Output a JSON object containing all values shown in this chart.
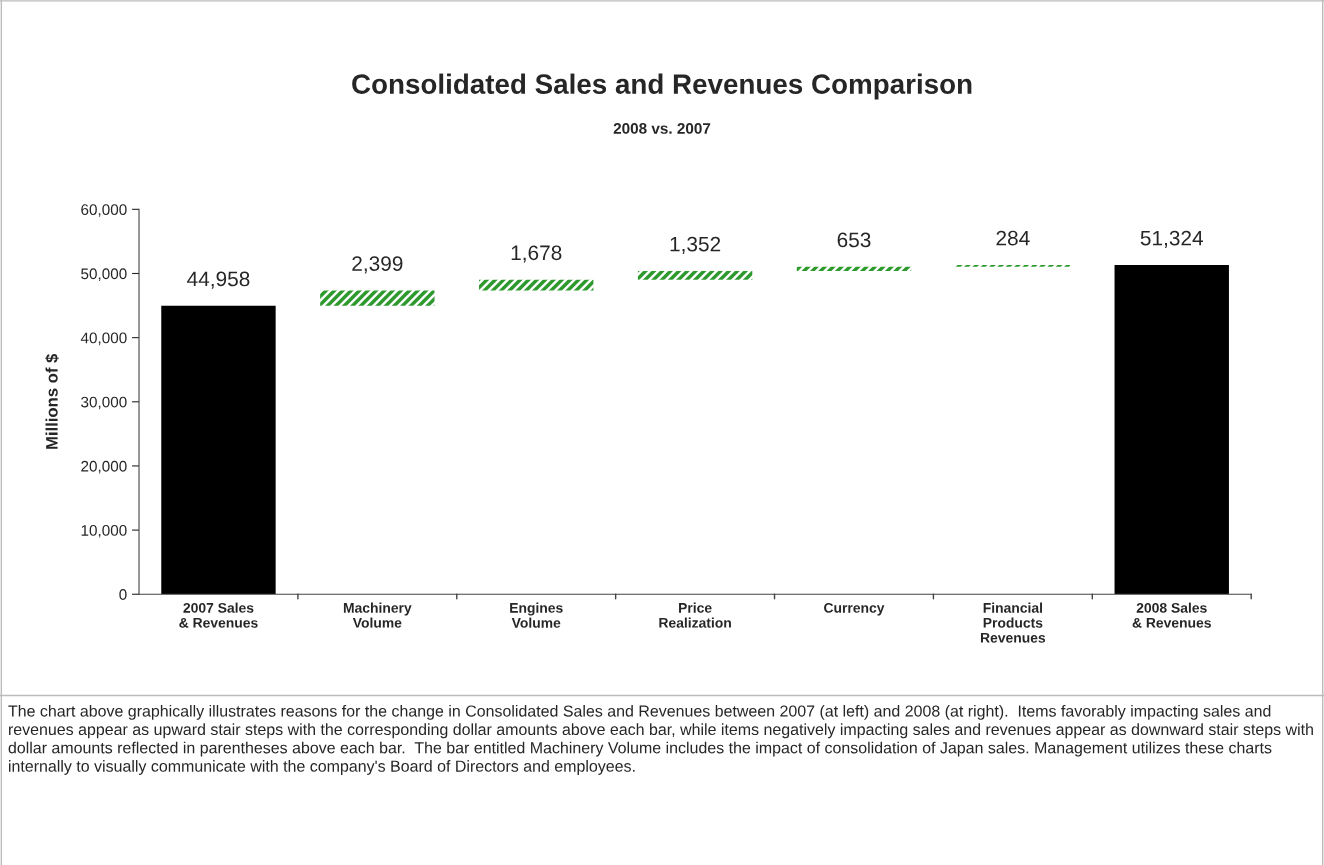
{
  "chart_data": {
    "type": "bar",
    "title": "Consolidated Sales and Revenues Comparison",
    "subtitle": "2008 vs. 2007",
    "ylabel": "Millions of $",
    "categories": [
      "2007 Sales\n& Revenues",
      "Machinery\nVolume",
      "Engines\nVolume",
      "Price\nRealization",
      "Currency",
      "Financial\nProducts\nRevenues",
      "2008 Sales\n& Revenues"
    ],
    "values": [
      44958,
      2399,
      1678,
      1352,
      653,
      284,
      51324
    ],
    "base": [
      0,
      44958,
      47357,
      49035,
      50387,
      51040,
      0
    ],
    "colors": [
      "#000000",
      "#2e9a2e",
      "#2e9a2e",
      "#2e9a2e",
      "#2e9a2e",
      "#2e9a2e",
      "#000000"
    ],
    "value_labels": [
      "44,958",
      "2,399",
      "1,678",
      "1,352",
      "653",
      "284",
      "51,324"
    ],
    "ylim": [
      0,
      60000
    ],
    "yticks": [
      {
        "value": 0,
        "label": "0"
      },
      {
        "value": 10000,
        "label": "10,000"
      },
      {
        "value": 20000,
        "label": "20,000"
      },
      {
        "value": 30000,
        "label": "30,000"
      },
      {
        "value": 40000,
        "label": "40,000"
      },
      {
        "value": 50000,
        "label": "50,000"
      },
      {
        "value": 60000,
        "label": "60,000"
      }
    ],
    "annotations": [
      "The chart above graphically illustrates reasons for the change in Consolidated Sales and Revenues between 2007 (at left) and 2008 (at right).  Items favorably impacting sales and revenues appear as upward stair steps with the corresponding dollar amounts above each bar, while items negatively impacting sales and revenues appear as downward stair steps with dollar amounts reflected in parentheses above each bar.  The bar entitled Machinery Volume includes the impact of consolidation of Japan sales. Management utilizes these charts internally to visually communicate with the company's Board of Directors and employees."
    ]
  }
}
